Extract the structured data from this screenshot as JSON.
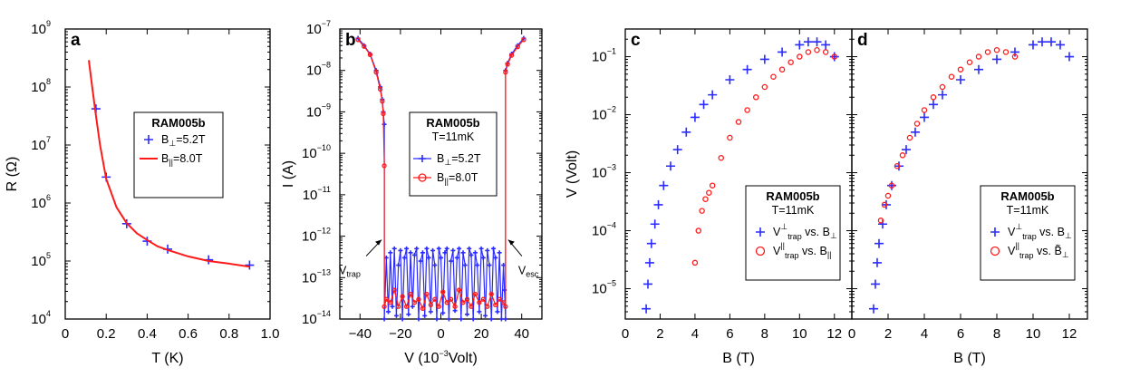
{
  "colors": {
    "blue": "#2b2bff",
    "red": "#ff1a1a"
  },
  "chart_data": [
    {
      "id": "a",
      "type": "scatter",
      "panel_label": "a",
      "xlabel": "T (K)",
      "ylabel": "R (Ω)",
      "xlim": [
        0,
        1.0
      ],
      "ylim": [
        10000,
        1000000000
      ],
      "yscale": "log",
      "xticks": [
        "0",
        "0.2",
        "0.4",
        "0.6",
        "0.8",
        "1.0"
      ],
      "yticks": [
        {
          "base": "10",
          "exp": "4"
        },
        {
          "base": "10",
          "exp": "5"
        },
        {
          "base": "10",
          "exp": "6"
        },
        {
          "base": "10",
          "exp": "7"
        },
        {
          "base": "10",
          "exp": "8"
        },
        {
          "base": "10",
          "exp": "9"
        }
      ],
      "legend": {
        "title": "RAM005b",
        "subtitle": "",
        "placement": "center-right"
      },
      "series": [
        {
          "name": "B⊥=5.2T",
          "marker": "plus",
          "color": "#2b2bff",
          "x": [
            0.15,
            0.2,
            0.3,
            0.4,
            0.5,
            0.7,
            0.9
          ],
          "y": [
            42000000,
            2800000,
            440000,
            220000,
            160000,
            105000,
            85000
          ]
        },
        {
          "name": "B||=8.0T",
          "marker": "line",
          "color": "#ff1a1a",
          "x": [
            0.115,
            0.13,
            0.15,
            0.17,
            0.2,
            0.25,
            0.3,
            0.35,
            0.4,
            0.45,
            0.5,
            0.6,
            0.7,
            0.8,
            0.9
          ],
          "y": [
            290000000,
            110000000,
            32000000,
            10000000,
            2600000,
            850000,
            450000,
            300000,
            230000,
            180000,
            155000,
            120000,
            100000,
            90000,
            80000
          ]
        }
      ]
    },
    {
      "id": "b",
      "type": "line",
      "panel_label": "b",
      "xlabel": "V (10-3Volt)",
      "ylabel": "I (A)",
      "xlim": [
        -50,
        50
      ],
      "ylim": [
        1e-14,
        1e-07
      ],
      "yscale": "log",
      "xticks": [
        "-40",
        "-20",
        "0",
        "20",
        "40"
      ],
      "yticks": [
        {
          "base": "10",
          "exp": "-14"
        },
        {
          "base": "10",
          "exp": "-13"
        },
        {
          "base": "10",
          "exp": "-12"
        },
        {
          "base": "10",
          "exp": "-11"
        },
        {
          "base": "10",
          "exp": "-10"
        },
        {
          "base": "10",
          "exp": "-9"
        },
        {
          "base": "10",
          "exp": "-8"
        },
        {
          "base": "10",
          "exp": "-7"
        }
      ],
      "legend": {
        "title": "RAM005b",
        "subtitle": "T=11mK",
        "placement": "center-right"
      },
      "annotations": [
        "Vtrap",
        "Vesc"
      ],
      "series": [
        {
          "name": "B⊥=5.2T",
          "marker": "line-plus",
          "color": "#2b2bff",
          "x": [
            -41,
            -38,
            -35,
            -32,
            -30,
            -29,
            -28.5,
            -28,
            -28,
            -27,
            -26,
            -25,
            -24,
            -23,
            -22,
            -21,
            -20,
            -19,
            -18,
            -17,
            -16,
            -15,
            -14,
            -13,
            -12,
            -11,
            -10,
            -9,
            -8,
            -7,
            -6,
            -5,
            -4,
            -3,
            -2,
            -1,
            0,
            1,
            2,
            3,
            4,
            5,
            6,
            7,
            8,
            9,
            10,
            11,
            12,
            13,
            14,
            15,
            16,
            17,
            18,
            19,
            20,
            21,
            22,
            23,
            24,
            25,
            26,
            27,
            28,
            29,
            30,
            31,
            31.5,
            32,
            32,
            33,
            35,
            38,
            41
          ],
          "y": [
            6e-08,
            4e-08,
            2.5e-08,
            1e-08,
            4e-09,
            2e-09,
            1e-09,
            5e-10,
            1e-14,
            3e-13,
            1.5e-14,
            4e-13,
            2e-14,
            5e-13,
            1.2e-14,
            2e-13,
            4.5e-13,
            1e-14,
            3e-13,
            5e-13,
            1.3e-14,
            4e-13,
            2e-14,
            3.5e-13,
            5e-13,
            1e-14,
            2.5e-13,
            4e-13,
            1.2e-14,
            5e-13,
            3e-13,
            1.5e-14,
            4.5e-13,
            2e-13,
            1e-14,
            5e-13,
            3e-13,
            1.4e-14,
            4e-13,
            5e-13,
            1e-14,
            2.5e-13,
            4.5e-13,
            1.6e-14,
            3e-13,
            5e-13,
            1e-14,
            4e-13,
            2e-13,
            1.3e-14,
            5e-13,
            3.5e-13,
            1e-14,
            4e-13,
            2e-13,
            1.5e-14,
            5e-13,
            3e-13,
            1.2e-14,
            4.5e-13,
            2e-13,
            1e-14,
            5e-13,
            3e-13,
            1.5e-14,
            4e-13,
            1e-14,
            2e-13,
            5e-14,
            1e-14,
            1e-08,
            1.5e-08,
            2.5e-08,
            4e-08,
            6e-08
          ]
        },
        {
          "name": "B||=8.0T",
          "marker": "line-circle",
          "color": "#ff1a1a",
          "x": [
            -41,
            -38,
            -35,
            -32,
            -30,
            -29,
            -28.5,
            -28,
            -28,
            -27,
            -25,
            -23,
            -21,
            -19,
            -17,
            -15,
            -13,
            -11,
            -9,
            -7,
            -5,
            -3,
            -1,
            1,
            3,
            5,
            7,
            9,
            11,
            13,
            15,
            17,
            19,
            21,
            23,
            25,
            27,
            29,
            31,
            32,
            32,
            33,
            35,
            38,
            41
          ],
          "y": [
            5.5e-08,
            3.8e-08,
            2.4e-08,
            9e-09,
            3.5e-09,
            1.8e-09,
            9e-10,
            5e-11,
            2e-14,
            3e-14,
            2.5e-14,
            5e-14,
            2e-14,
            3.5e-14,
            2e-14,
            4e-14,
            2.5e-14,
            3e-14,
            1.8e-14,
            4e-14,
            2.2e-14,
            3e-14,
            2e-14,
            4.5e-14,
            2.5e-14,
            3e-14,
            2e-14,
            5e-14,
            2.5e-14,
            3e-14,
            2e-14,
            4e-14,
            2.5e-14,
            3e-14,
            2e-14,
            4e-14,
            2.2e-14,
            3e-14,
            2.5e-14,
            2e-14,
            9e-09,
            1.4e-08,
            2.3e-08,
            3.7e-08,
            5.5e-08
          ]
        }
      ]
    },
    {
      "id": "c",
      "type": "scatter",
      "panel_label": "c",
      "xlabel": "B (T)",
      "ylabel": "V (Volt)",
      "xlim": [
        0,
        13
      ],
      "ylim": [
        3e-06,
        0.3
      ],
      "yscale": "log",
      "xticks": [
        "0",
        "2",
        "4",
        "6",
        "8",
        "10",
        "12"
      ],
      "yticks": [
        {
          "base": "10",
          "exp": "-5"
        },
        {
          "base": "10",
          "exp": "-4"
        },
        {
          "base": "10",
          "exp": "-3"
        },
        {
          "base": "10",
          "exp": "-2"
        },
        {
          "base": "10",
          "exp": "-1"
        }
      ],
      "legend": {
        "title": "RAM005b",
        "subtitle": "T=11mK",
        "placement": "bottom-right"
      },
      "series": [
        {
          "name": "Vtrap⊥ vs. B⊥",
          "marker": "plus",
          "color": "#2b2bff",
          "x": [
            1.2,
            1.3,
            1.4,
            1.5,
            1.7,
            1.9,
            2.2,
            2.6,
            3.0,
            3.5,
            4.0,
            4.5,
            5.0,
            6.0,
            7.0,
            8.0,
            9.0,
            10.0,
            10.5,
            11.0,
            11.5,
            12.0
          ],
          "y": [
            4.5e-06,
            1.2e-05,
            2.8e-05,
            6e-05,
            0.00013,
            0.00028,
            0.0006,
            0.0013,
            0.0025,
            0.005,
            0.009,
            0.015,
            0.022,
            0.04,
            0.06,
            0.09,
            0.12,
            0.16,
            0.18,
            0.18,
            0.16,
            0.1
          ]
        },
        {
          "name": "Vtrap|| vs. B||",
          "marker": "circle",
          "color": "#ff1a1a",
          "x": [
            4.0,
            4.2,
            4.4,
            4.6,
            4.8,
            5.0,
            5.5,
            6.0,
            6.5,
            7.0,
            7.5,
            8.0,
            8.5,
            9.0,
            9.5,
            10.0,
            10.5,
            11.0,
            11.5,
            12.0
          ],
          "y": [
            2.8e-05,
            0.0001,
            0.00022,
            0.00035,
            0.00045,
            0.0006,
            0.0018,
            0.004,
            0.0075,
            0.012,
            0.02,
            0.03,
            0.045,
            0.06,
            0.08,
            0.1,
            0.12,
            0.13,
            0.12,
            0.1
          ]
        }
      ]
    },
    {
      "id": "d",
      "type": "scatter",
      "panel_label": "d",
      "xlabel": "B (T)",
      "ylabel": "",
      "xlim": [
        0,
        13
      ],
      "ylim": [
        3e-06,
        0.3
      ],
      "yscale": "log",
      "xticks": [
        "0",
        "2",
        "4",
        "6",
        "8",
        "10",
        "12"
      ],
      "legend": {
        "title": "RAM005b",
        "subtitle": "T=11mK",
        "placement": "bottom-right"
      },
      "series": [
        {
          "name": "Vtrap⊥ vs. B⊥",
          "marker": "plus",
          "color": "#2b2bff",
          "x": [
            1.2,
            1.3,
            1.4,
            1.5,
            1.7,
            1.9,
            2.2,
            2.6,
            3.0,
            3.5,
            4.0,
            4.5,
            5.0,
            6.0,
            7.0,
            8.0,
            9.0,
            10.0,
            10.5,
            11.0,
            11.5,
            12.0
          ],
          "y": [
            4.5e-06,
            1.2e-05,
            2.8e-05,
            6e-05,
            0.00013,
            0.00028,
            0.0006,
            0.0013,
            0.0025,
            0.005,
            0.009,
            0.015,
            0.022,
            0.04,
            0.06,
            0.09,
            0.12,
            0.16,
            0.18,
            0.18,
            0.16,
            0.1
          ]
        },
        {
          "name": "Vtrap|| vs. B~⊥",
          "marker": "circle",
          "color": "#ff1a1a",
          "x": [
            1.6,
            1.8,
            2.0,
            2.2,
            2.5,
            2.8,
            3.2,
            3.6,
            4.0,
            4.5,
            5.0,
            5.5,
            6.0,
            6.5,
            7.0,
            7.5,
            8.0,
            8.5,
            9.0
          ],
          "y": [
            0.00015,
            0.00028,
            0.0004,
            0.0006,
            0.0013,
            0.002,
            0.004,
            0.007,
            0.012,
            0.02,
            0.03,
            0.045,
            0.06,
            0.08,
            0.1,
            0.12,
            0.13,
            0.12,
            0.1
          ]
        }
      ]
    }
  ]
}
